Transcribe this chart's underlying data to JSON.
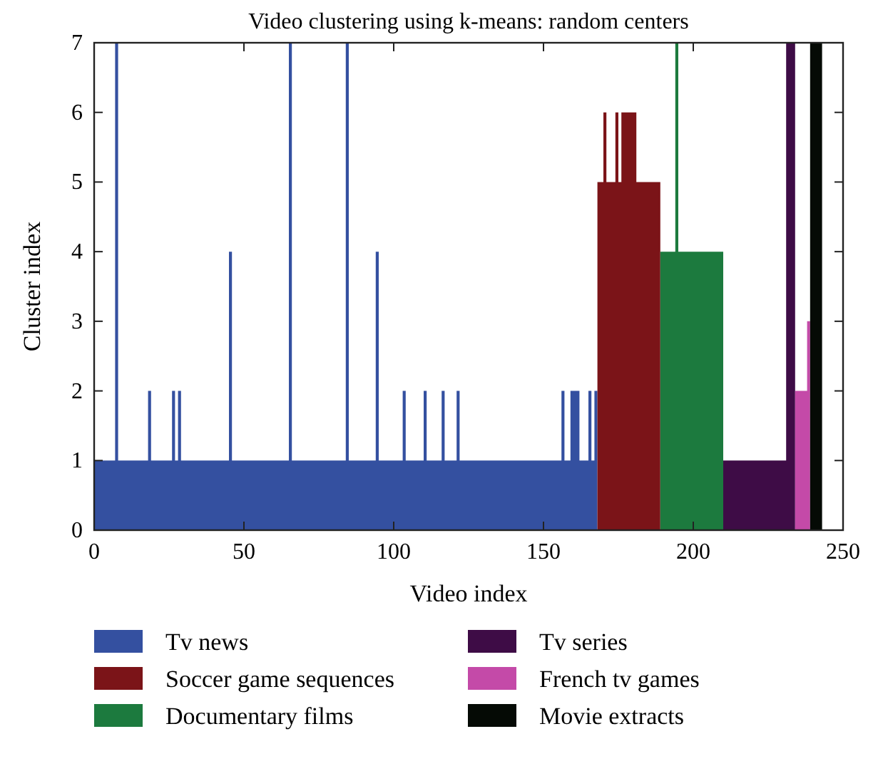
{
  "chart_data": {
    "type": "area",
    "title": "Video clustering using k-means: random centers",
    "xlabel": "Video index",
    "ylabel": "Cluster index",
    "xlim": [
      0,
      250
    ],
    "xticks": [
      0,
      50,
      100,
      150,
      200,
      250
    ],
    "ylim": [
      0,
      7
    ],
    "yticks": [
      0,
      1,
      2,
      3,
      4,
      5,
      6,
      7
    ],
    "legend": "bottom",
    "series": [
      {
        "name": "Tv news",
        "color": "#3450a0",
        "x": [
          0,
          1,
          2,
          3,
          4,
          5,
          6,
          7,
          8,
          9,
          10,
          11,
          12,
          13,
          14,
          15,
          16,
          17,
          18,
          19,
          20,
          21,
          22,
          23,
          24,
          25,
          26,
          27,
          28,
          29,
          30,
          31,
          32,
          33,
          34,
          35,
          36,
          37,
          38,
          39,
          40,
          41,
          42,
          43,
          44,
          45,
          46,
          47,
          48,
          49,
          50,
          51,
          52,
          53,
          54,
          55,
          56,
          57,
          58,
          59,
          60,
          61,
          62,
          63,
          64,
          65,
          66,
          67,
          68,
          69,
          70,
          71,
          72,
          73,
          74,
          75,
          76,
          77,
          78,
          79,
          80,
          81,
          82,
          83,
          84,
          85,
          86,
          87,
          88,
          89,
          90,
          91,
          92,
          93,
          94,
          95,
          96,
          97,
          98,
          99,
          100,
          101,
          102,
          103,
          104,
          105,
          106,
          107,
          108,
          109,
          110,
          111,
          112,
          113,
          114,
          115,
          116,
          117,
          118,
          119,
          120,
          121,
          122,
          123,
          124,
          125,
          126,
          127,
          128,
          129,
          130,
          131,
          132,
          133,
          134,
          135,
          136,
          137,
          138,
          139,
          140,
          141,
          142,
          143,
          144,
          145,
          146,
          147,
          148,
          149,
          150,
          151,
          152,
          153,
          154,
          155,
          156,
          157,
          158,
          159,
          160,
          161,
          162,
          163,
          164,
          165,
          166,
          167
        ],
        "values": [
          1,
          1,
          1,
          1,
          1,
          1,
          1,
          7,
          1,
          1,
          1,
          1,
          1,
          1,
          1,
          1,
          1,
          1,
          2,
          1,
          1,
          1,
          1,
          1,
          1,
          1,
          2,
          1,
          2,
          1,
          1,
          1,
          1,
          1,
          1,
          1,
          1,
          1,
          1,
          1,
          1,
          1,
          1,
          1,
          1,
          4,
          1,
          1,
          1,
          1,
          1,
          1,
          1,
          1,
          1,
          1,
          1,
          1,
          1,
          1,
          1,
          1,
          1,
          1,
          1,
          7,
          1,
          1,
          1,
          1,
          1,
          1,
          1,
          1,
          1,
          1,
          1,
          1,
          1,
          1,
          1,
          1,
          1,
          1,
          7,
          1,
          1,
          1,
          1,
          1,
          1,
          1,
          1,
          1,
          4,
          1,
          1,
          1,
          1,
          1,
          1,
          1,
          1,
          2,
          1,
          1,
          1,
          1,
          1,
          1,
          2,
          1,
          1,
          1,
          1,
          1,
          2,
          1,
          1,
          1,
          1,
          2,
          1,
          1,
          1,
          1,
          1,
          1,
          1,
          1,
          1,
          1,
          1,
          1,
          1,
          1,
          1,
          1,
          1,
          1,
          1,
          1,
          1,
          1,
          1,
          1,
          1,
          1,
          1,
          1,
          1,
          1,
          1,
          1,
          1,
          1,
          2,
          1,
          1,
          2,
          2,
          2,
          1,
          1,
          1,
          2,
          1,
          2
        ]
      },
      {
        "name": "Soccer game sequences",
        "color": "#7b1418",
        "x": [
          168,
          169,
          170,
          171,
          172,
          173,
          174,
          175,
          176,
          177,
          178,
          179,
          180,
          181,
          182,
          183,
          184,
          185,
          186,
          187,
          188
        ],
        "values": [
          5,
          5,
          6,
          5,
          5,
          5,
          6,
          5,
          6,
          6,
          6,
          6,
          6,
          5,
          5,
          5,
          5,
          5,
          5,
          5,
          5
        ]
      },
      {
        "name": "Documentary films",
        "color": "#1c7a3e",
        "x": [
          189,
          190,
          191,
          192,
          193,
          194,
          195,
          196,
          197,
          198,
          199,
          200,
          201,
          202,
          203,
          204,
          205,
          206,
          207,
          208,
          209
        ],
        "values": [
          4,
          4,
          4,
          4,
          4,
          7,
          4,
          4,
          4,
          4,
          4,
          4,
          4,
          4,
          4,
          4,
          4,
          4,
          4,
          4,
          4
        ]
      },
      {
        "name": "Tv series",
        "color": "#3e0c46",
        "x": [
          210,
          211,
          212,
          213,
          214,
          215,
          216,
          217,
          218,
          219,
          220,
          221,
          222,
          223,
          224,
          225,
          226,
          227,
          228,
          229,
          230,
          231,
          232,
          233
        ],
        "values": [
          1,
          1,
          1,
          1,
          1,
          1,
          1,
          1,
          1,
          1,
          1,
          1,
          1,
          1,
          1,
          1,
          1,
          1,
          1,
          1,
          1,
          7,
          7,
          7
        ]
      },
      {
        "name": "French tv games",
        "color": "#c44aa8",
        "x": [
          234,
          235,
          236,
          237,
          238
        ],
        "values": [
          2,
          2,
          2,
          2,
          3
        ]
      },
      {
        "name": "Movie extracts",
        "color": "#050a05",
        "x": [
          239,
          240,
          241,
          242
        ],
        "values": [
          7,
          7,
          7,
          7
        ]
      }
    ]
  }
}
